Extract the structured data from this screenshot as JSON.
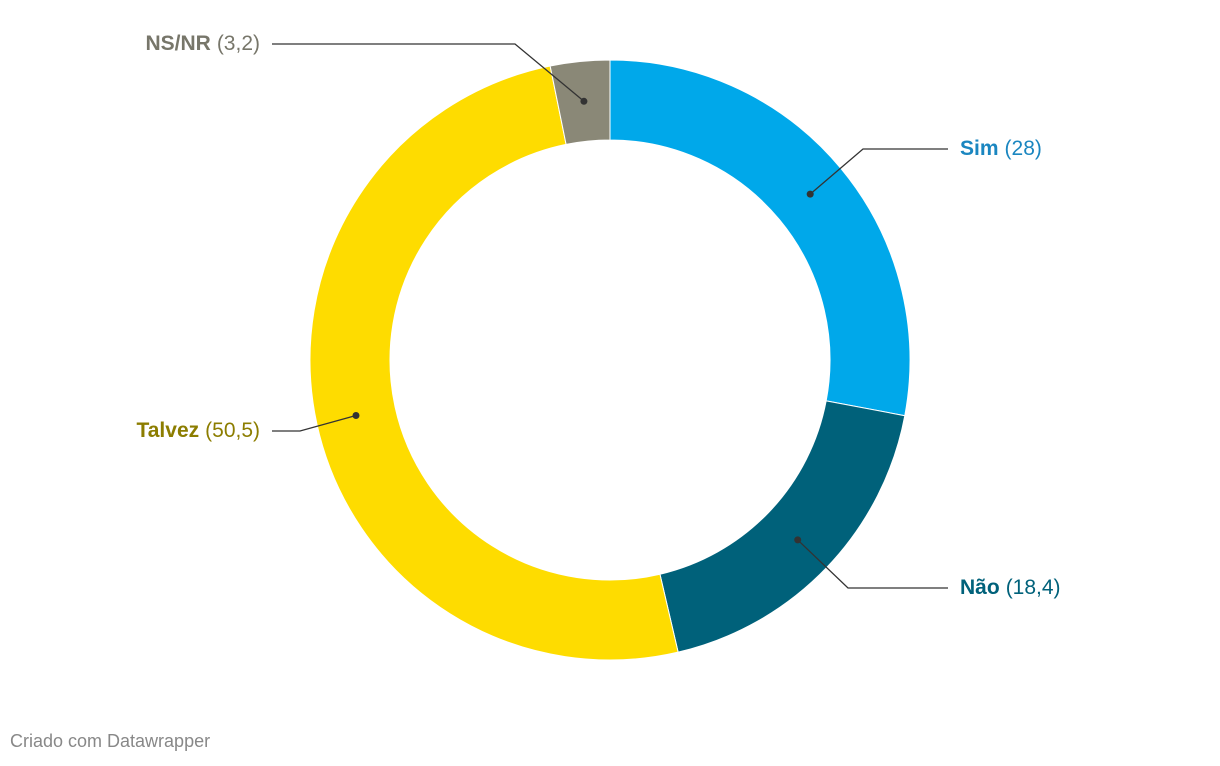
{
  "chart_data": {
    "type": "pie",
    "categories": [
      "Sim",
      "Não",
      "Talvez",
      "NS/NR"
    ],
    "values": [
      28,
      18.4,
      50.5,
      3.2
    ],
    "value_labels": [
      "(28)",
      "(18,4)",
      "(50,5)",
      "(3,2)"
    ],
    "colors": [
      "#00a8ea",
      "#00617a",
      "#fedc00",
      "#8a8877"
    ],
    "label_colors": [
      "#1a86c0",
      "#00617a",
      "#8c7d00",
      "#77766a"
    ],
    "donut": true,
    "credit": "Criado com Datawrapper"
  }
}
